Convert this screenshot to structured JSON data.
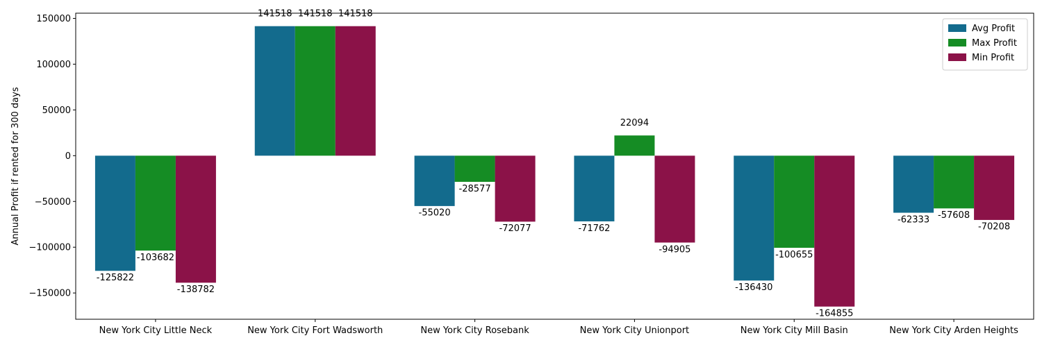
{
  "chart_data": {
    "type": "bar",
    "title": "",
    "xlabel": "",
    "ylabel": "Annual Profit if rented for 300 days",
    "categories": [
      "New York City Little Neck",
      "New York City Fort Wadsworth",
      "New York City Rosebank",
      "New York City Unionport",
      "New York City Mill Basin",
      "New York City Arden Heights"
    ],
    "series": [
      {
        "name": "Avg Profit",
        "color": "#136b8d",
        "values": [
          -125822,
          141518,
          -55020,
          -71762,
          -136430,
          -62333
        ]
      },
      {
        "name": "Max Profit",
        "color": "#158c24",
        "values": [
          -103682,
          141518,
          -28577,
          22094,
          -100655,
          -57608
        ]
      },
      {
        "name": "Min Profit",
        "color": "#8b1248",
        "values": [
          -138782,
          141518,
          -72077,
          -94905,
          -164855,
          -70208
        ]
      }
    ],
    "ylim": [
      -178700,
      155700
    ],
    "yticks": [
      -150000,
      -100000,
      -50000,
      0,
      50000,
      100000,
      150000
    ],
    "ytick_labels": [
      "−150000",
      "−100000",
      "−50000",
      "0",
      "50000",
      "100000",
      "150000"
    ],
    "grid": false,
    "legend_position": "top-right"
  }
}
